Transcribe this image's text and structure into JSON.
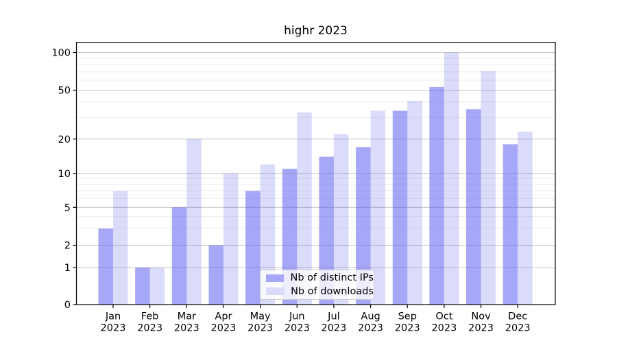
{
  "chart": {
    "title": "highr 2023"
  },
  "chart_data": {
    "type": "bar",
    "title": "highr 2023",
    "categories": [
      "Jan",
      "Feb",
      "Mar",
      "Apr",
      "May",
      "Jun",
      "Jul",
      "Aug",
      "Sep",
      "Oct",
      "Nov",
      "Dec"
    ],
    "category_year": "2023",
    "series": [
      {
        "name": "Nb of distinct IPs",
        "color": "#a7a7f8",
        "values": [
          3,
          1,
          5,
          2,
          7,
          11,
          14,
          17,
          34,
          53,
          35,
          18
        ]
      },
      {
        "name": "Nb of downloads",
        "color": "#dbdbfa",
        "values": [
          7,
          1,
          20,
          10,
          12,
          33,
          22,
          34,
          41,
          100,
          71,
          23
        ]
      }
    ],
    "yscale": "symlog",
    "ylim": [
      0,
      115
    ],
    "y_ticks": [
      0,
      1,
      2,
      5,
      10,
      20,
      50,
      100
    ],
    "y_minor_ticks": [
      3,
      4,
      6,
      7,
      8,
      9,
      30,
      40,
      60,
      70,
      80,
      90
    ],
    "grid": true,
    "grid_color_major": "#c9c9c9",
    "grid_color_minor": "#ececec",
    "legend_position": "lower center"
  }
}
